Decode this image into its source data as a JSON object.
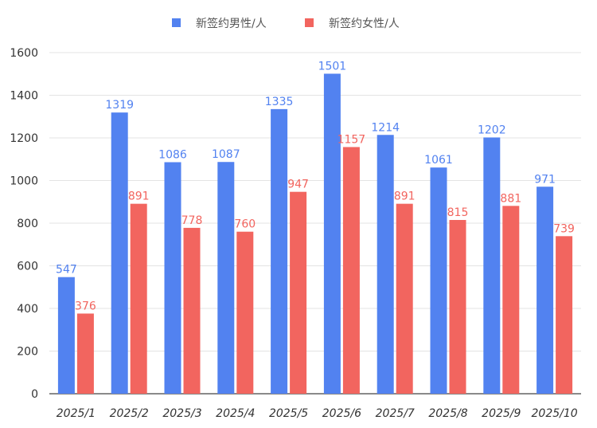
{
  "chart_data": {
    "type": "bar",
    "categories": [
      "2025/1",
      "2025/2",
      "2025/3",
      "2025/4",
      "2025/5",
      "2025/6",
      "2025/7",
      "2025/8",
      "2025/9",
      "2025/10"
    ],
    "series": [
      {
        "name": "新签约男性/人",
        "color": "#5282f0",
        "values": [
          547,
          1319,
          1086,
          1087,
          1335,
          1501,
          1214,
          1061,
          1202,
          971
        ]
      },
      {
        "name": "新签约女性/人",
        "color": "#f2655f",
        "values": [
          376,
          891,
          778,
          760,
          947,
          1157,
          891,
          815,
          881,
          739
        ]
      }
    ],
    "yticks": [
      "0",
      "200",
      "400",
      "600",
      "800",
      "1000",
      "1200",
      "1400",
      "1600"
    ],
    "ylim": [
      0,
      1600
    ],
    "grid": true,
    "legend": "top",
    "data_labels": true
  }
}
